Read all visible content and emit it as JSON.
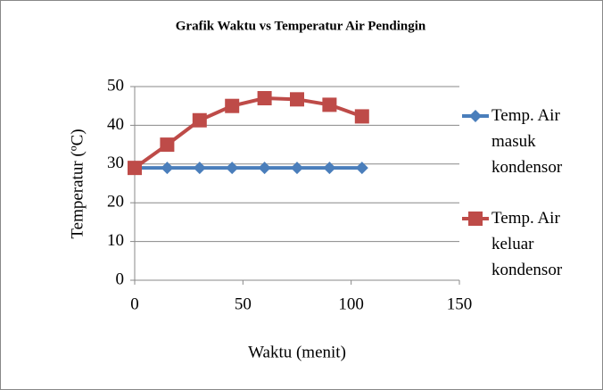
{
  "chart_data": {
    "type": "line",
    "title": "Grafik Waktu vs Temperatur Air Pendingin",
    "x_label": "Waktu (menit)",
    "y_label": "Temperatur (ºC)",
    "x": [
      0,
      15,
      30,
      45,
      60,
      75,
      90,
      105
    ],
    "series": [
      {
        "name": "Temp. Air masuk kondensor",
        "color": "#4a7ebb",
        "marker": "diamond",
        "values": [
          29,
          29,
          29,
          29,
          29,
          29,
          29,
          29
        ]
      },
      {
        "name": "Temp. Air keluar kondensor",
        "color": "#be4b48",
        "marker": "square",
        "values": [
          29,
          35,
          41.3,
          45,
          47,
          46.7,
          45.3,
          42.3
        ]
      }
    ],
    "xlim": [
      0,
      150
    ],
    "xticks": [
      0,
      50,
      100,
      150
    ],
    "ylim": [
      0,
      50
    ],
    "yticks": [
      0,
      10,
      20,
      30,
      40,
      50
    ],
    "grid": true,
    "legend": "right"
  }
}
